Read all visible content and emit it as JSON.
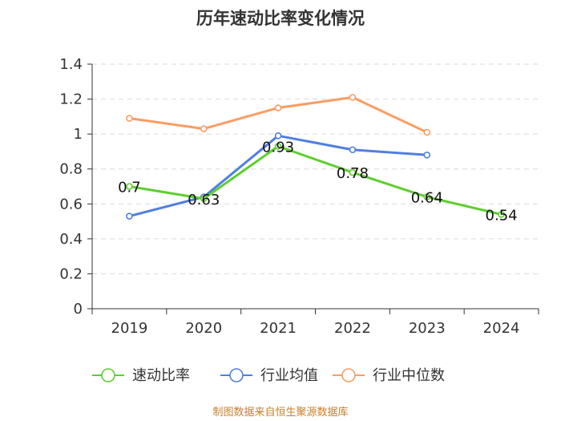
{
  "chart_data": {
    "type": "line",
    "title": "历年速动比率变化情况",
    "categories": [
      "2019",
      "2020",
      "2021",
      "2022",
      "2023",
      "2024"
    ],
    "ylim": [
      0,
      1.4
    ],
    "yticks": [
      "0",
      "0.2",
      "0.4",
      "0.6",
      "0.8",
      "1",
      "1.2",
      "1.4"
    ],
    "ytick_values": [
      0,
      0.2,
      0.4,
      0.6,
      0.8,
      1.0,
      1.2,
      1.4
    ],
    "grid": true,
    "legend_position": "bottom",
    "series": [
      {
        "name": "速动比率",
        "color": "#5fce2e",
        "values": [
          0.7,
          0.63,
          0.93,
          0.78,
          0.64,
          0.54
        ],
        "labels": [
          "0.7",
          "0.63",
          "0.93",
          "0.78",
          "0.64",
          "0.54"
        ],
        "show_labels": true
      },
      {
        "name": "行业均值",
        "color": "#4f7fe0",
        "values": [
          0.53,
          0.64,
          0.99,
          0.91,
          0.88,
          null
        ],
        "show_labels": false
      },
      {
        "name": "行业中位数",
        "color": "#f99d64",
        "values": [
          1.09,
          1.03,
          1.15,
          1.21,
          1.01,
          null
        ],
        "show_labels": false
      }
    ],
    "source": "制图数据来自恒生聚源数据库"
  }
}
